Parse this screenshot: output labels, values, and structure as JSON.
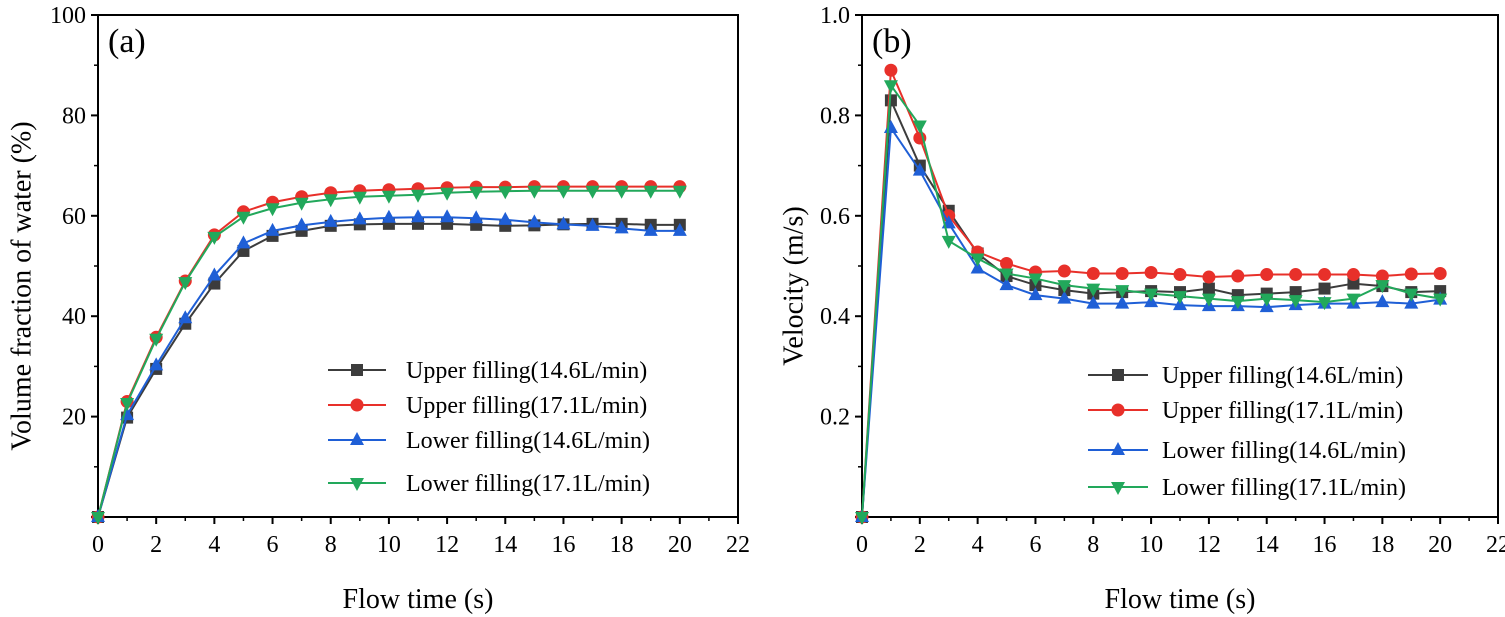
{
  "chart_data": [
    {
      "type": "line",
      "panel_label": "(a)",
      "xlabel": "Flow time (s)",
      "ylabel": "Volume fraction of water (%)",
      "xlim": [
        0,
        22
      ],
      "ylim": [
        0,
        100
      ],
      "xticks": [
        0,
        2,
        4,
        6,
        8,
        10,
        12,
        14,
        16,
        18,
        20,
        22
      ],
      "yticks": [
        20,
        40,
        60,
        80,
        100
      ],
      "x": [
        0,
        1,
        2,
        3,
        4,
        5,
        6,
        7,
        8,
        9,
        10,
        11,
        12,
        13,
        14,
        15,
        16,
        17,
        18,
        19,
        20
      ],
      "legend_position": "lower-right",
      "series": [
        {
          "name": "Upper filling(14.6L/min)",
          "color": "#3c3c3c",
          "marker": "square",
          "values": [
            0,
            19.8,
            29.5,
            38.5,
            46.5,
            53,
            56,
            57,
            58,
            58.3,
            58.4,
            58.4,
            58.4,
            58.2,
            58,
            58.1,
            58.3,
            58.4,
            58.4,
            58.2,
            58.2
          ]
        },
        {
          "name": "Upper filling(17.1L/min)",
          "color": "#e8302a",
          "marker": "circle",
          "values": [
            0,
            23,
            35.8,
            47,
            56.2,
            60.8,
            62.7,
            63.8,
            64.6,
            65,
            65.2,
            65.4,
            65.6,
            65.7,
            65.7,
            65.8,
            65.8,
            65.8,
            65.8,
            65.8,
            65.8
          ]
        },
        {
          "name": "Lower filling(14.6L/min)",
          "color": "#1f5fd6",
          "marker": "triangle-up",
          "values": [
            0,
            20.3,
            30.2,
            39.6,
            48.1,
            54.5,
            57,
            58.1,
            58.8,
            59.3,
            59.6,
            59.7,
            59.7,
            59.5,
            59.2,
            58.7,
            58.3,
            58,
            57.5,
            57,
            57
          ]
        },
        {
          "name": "Lower filling(17.1L/min)",
          "color": "#22a85b",
          "marker": "triangle-down",
          "values": [
            0,
            22.7,
            35.5,
            46.8,
            55.8,
            59.8,
            61.5,
            62.6,
            63.3,
            63.8,
            64,
            64.2,
            64.6,
            64.8,
            64.9,
            65,
            65,
            65,
            65,
            65,
            65
          ]
        }
      ]
    },
    {
      "type": "line",
      "panel_label": "(b)",
      "xlabel": "Flow time (s)",
      "ylabel": "Velocity (m/s)",
      "xlim": [
        0,
        22
      ],
      "ylim": [
        0,
        1.0
      ],
      "xticks": [
        0,
        2,
        4,
        6,
        8,
        10,
        12,
        14,
        16,
        18,
        20,
        22
      ],
      "yticks": [
        0.2,
        0.4,
        0.6,
        0.8,
        1.0
      ],
      "ytick_labels": [
        "0.2",
        "0.4",
        "0.6",
        "0.8",
        "1.0"
      ],
      "x": [
        0,
        1,
        2,
        3,
        4,
        5,
        6,
        7,
        8,
        9,
        10,
        11,
        12,
        13,
        14,
        15,
        16,
        17,
        18,
        19,
        20
      ],
      "legend_position": "lower-right",
      "series": [
        {
          "name": "Upper filling(14.6L/min)",
          "color": "#3c3c3c",
          "marker": "square",
          "values": [
            0,
            0.83,
            0.7,
            0.61,
            0.525,
            0.48,
            0.462,
            0.452,
            0.445,
            0.448,
            0.45,
            0.448,
            0.455,
            0.442,
            0.445,
            0.448,
            0.455,
            0.465,
            0.46,
            0.448,
            0.45
          ]
        },
        {
          "name": "Upper filling(17.1L/min)",
          "color": "#e8302a",
          "marker": "circle",
          "values": [
            0,
            0.89,
            0.755,
            0.6,
            0.528,
            0.505,
            0.488,
            0.49,
            0.485,
            0.485,
            0.487,
            0.483,
            0.478,
            0.48,
            0.483,
            0.483,
            0.483,
            0.483,
            0.48,
            0.484,
            0.485
          ]
        },
        {
          "name": "Lower filling(14.6L/min)",
          "color": "#1f5fd6",
          "marker": "triangle-up",
          "values": [
            0,
            0.775,
            0.69,
            0.585,
            0.495,
            0.462,
            0.442,
            0.435,
            0.425,
            0.425,
            0.428,
            0.422,
            0.42,
            0.42,
            0.418,
            0.422,
            0.425,
            0.425,
            0.428,
            0.425,
            0.433
          ]
        },
        {
          "name": "Lower filling(17.1L/min)",
          "color": "#22a85b",
          "marker": "triangle-down",
          "values": [
            0,
            0.86,
            0.78,
            0.55,
            0.515,
            0.485,
            0.475,
            0.462,
            0.455,
            0.452,
            0.445,
            0.44,
            0.435,
            0.43,
            0.435,
            0.432,
            0.428,
            0.435,
            0.462,
            0.445,
            0.435
          ]
        }
      ]
    }
  ]
}
